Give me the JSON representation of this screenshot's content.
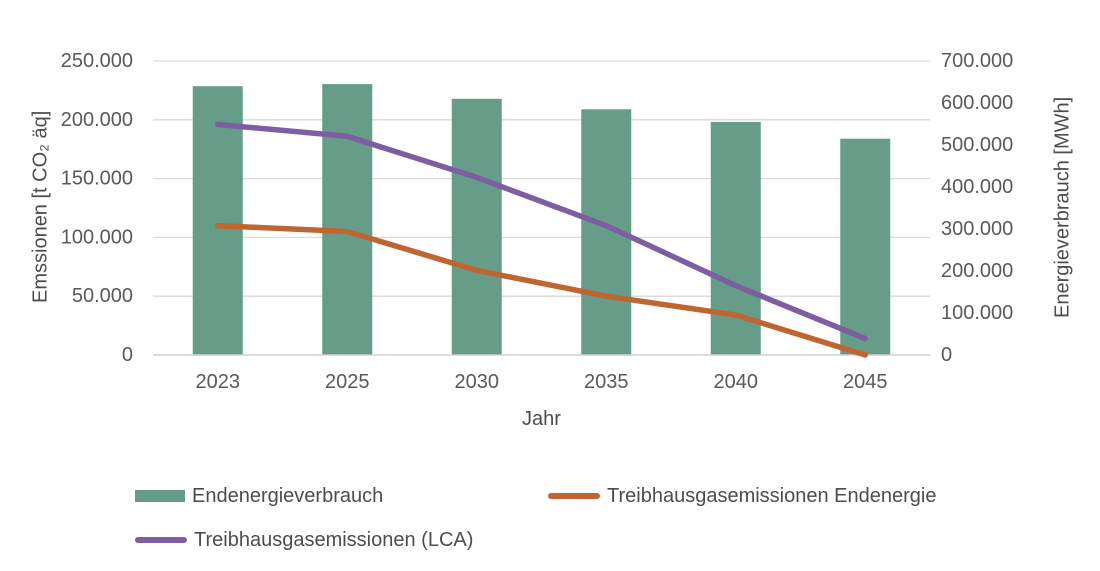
{
  "chart_data": {
    "type": "bar",
    "subtype": "combo-bar-line-dual-axis",
    "categories": [
      "2023",
      "2025",
      "2030",
      "2035",
      "2040",
      "2045"
    ],
    "series": [
      {
        "name": "Endenergieverbrauch",
        "kind": "bar",
        "axis": "right",
        "color": "#659D89",
        "values": [
          640000,
          645000,
          610000,
          585000,
          555000,
          515000
        ]
      },
      {
        "name": "Treibhausgasemissionen Endenergie",
        "kind": "line",
        "axis": "left",
        "color": "#BF6630",
        "values": [
          110000,
          105000,
          72000,
          50000,
          34000,
          0
        ]
      },
      {
        "name": "Treibhausgasemissionen (LCA)",
        "kind": "line",
        "axis": "left",
        "color": "#7E5EA2",
        "values": [
          196000,
          186000,
          151000,
          110000,
          59000,
          14000
        ]
      }
    ],
    "title": "",
    "xlabel": "Jahr",
    "left_axis": {
      "label": "Emssionen [t CO₂ äq]",
      "min": 0,
      "max": 250000,
      "step": 50000,
      "tick_labels": [
        "0",
        "50.000",
        "100.000",
        "150.000",
        "200.000",
        "250.000"
      ]
    },
    "right_axis": {
      "label": "Energieverbrauch [MWh]",
      "min": 0,
      "max": 700000,
      "step": 100000,
      "tick_labels": [
        "0",
        "100.000",
        "200.000",
        "300.000",
        "400.000",
        "500.000",
        "600.000",
        "700.000"
      ]
    },
    "grid": true,
    "legend_position": "bottom"
  },
  "styles": {
    "background": "#FFFFFF",
    "grid_color": "#DADADA",
    "axis_line_color": "#D0D0D0",
    "tick_text_color": "#595959",
    "title_text_color": "#4D4D4D",
    "bar_color": "#659D89",
    "orange_line_color": "#BF6630",
    "purple_line_color": "#7E5EA2"
  }
}
